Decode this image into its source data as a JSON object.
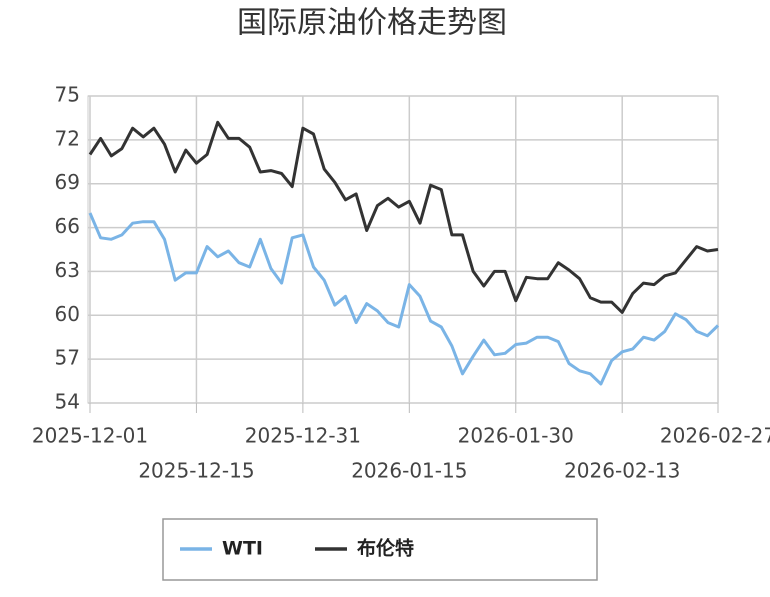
{
  "chart_data": {
    "type": "line",
    "title": "国际原油价格走势图",
    "categories": [
      "2025-12-01",
      null,
      null,
      null,
      null,
      null,
      null,
      null,
      null,
      null,
      "2025-12-15",
      null,
      null,
      null,
      null,
      null,
      null,
      null,
      null,
      null,
      "2025-12-31",
      null,
      null,
      null,
      null,
      null,
      null,
      null,
      null,
      null,
      "2026-01-15",
      null,
      null,
      null,
      null,
      null,
      null,
      null,
      null,
      null,
      "2026-01-30",
      null,
      null,
      null,
      null,
      null,
      null,
      null,
      null,
      null,
      "2026-02-13",
      null,
      null,
      null,
      null,
      null,
      null,
      null,
      null,
      "2026-02-27"
    ],
    "series": [
      {
        "name": "WTI",
        "color": "#7ab4e6",
        "values": [
          67.0,
          65.3,
          65.2,
          65.5,
          66.3,
          66.4,
          66.4,
          65.2,
          62.4,
          62.9,
          62.9,
          64.7,
          64.0,
          64.4,
          63.6,
          63.3,
          65.2,
          63.2,
          62.2,
          65.3,
          65.5,
          63.3,
          62.4,
          60.7,
          61.3,
          59.5,
          60.8,
          60.3,
          59.5,
          59.2,
          62.1,
          61.3,
          59.6,
          59.2,
          57.9,
          56.0,
          57.2,
          58.3,
          57.3,
          57.4,
          58.0,
          58.1,
          58.5,
          58.5,
          58.2,
          56.7,
          56.2,
          56.0,
          55.3,
          56.9,
          57.5,
          57.7,
          58.5,
          58.3,
          58.9,
          60.1,
          59.7,
          58.9,
          58.6,
          59.3
        ]
      },
      {
        "name": "布伦特",
        "color": "#333333",
        "values": [
          71.0,
          72.1,
          70.9,
          71.4,
          72.8,
          72.2,
          72.8,
          71.7,
          69.8,
          71.3,
          70.4,
          71.0,
          73.2,
          72.1,
          72.1,
          71.5,
          69.8,
          69.9,
          69.7,
          68.8,
          72.8,
          72.4,
          70.0,
          69.1,
          67.9,
          68.3,
          65.8,
          67.5,
          68.0,
          67.4,
          67.8,
          66.3,
          68.9,
          68.6,
          65.5,
          65.5,
          63.0,
          62.0,
          63.0,
          63.0,
          61.0,
          62.6,
          62.5,
          62.5,
          63.6,
          63.1,
          62.5,
          61.2,
          60.9,
          60.9,
          60.2,
          61.5,
          62.2,
          62.1,
          62.7,
          62.9,
          63.8,
          64.7,
          64.4,
          64.5
        ]
      }
    ],
    "ylim": [
      54,
      75
    ],
    "yticks": [
      54,
      57,
      60,
      63,
      66,
      69,
      72,
      75
    ],
    "grid": true,
    "legend": "bottom"
  }
}
